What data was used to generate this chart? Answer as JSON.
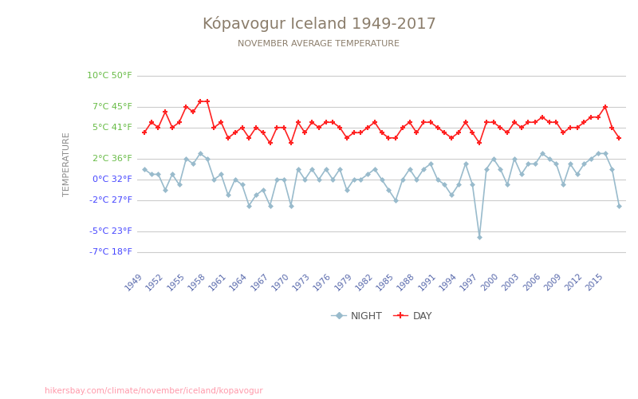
{
  "title": "Kópavogur Iceland 1949-2017",
  "subtitle": "NOVEMBER AVERAGE TEMPERATURE",
  "ylabel": "TEMPERATURE",
  "url_text": "hikersbay.com/climate/november/iceland/kopavogur",
  "title_color": "#8B7D6B",
  "subtitle_color": "#8B7D6B",
  "ylabel_color": "#8B8B8B",
  "grid_color": "#CCCCCC",
  "background_color": "#FFFFFF",
  "years": [
    1949,
    1950,
    1951,
    1952,
    1953,
    1954,
    1955,
    1956,
    1957,
    1958,
    1959,
    1960,
    1961,
    1962,
    1963,
    1964,
    1965,
    1966,
    1967,
    1968,
    1969,
    1970,
    1971,
    1972,
    1973,
    1974,
    1975,
    1976,
    1977,
    1978,
    1979,
    1980,
    1981,
    1982,
    1983,
    1984,
    1985,
    1986,
    1987,
    1988,
    1989,
    1990,
    1991,
    1992,
    1993,
    1994,
    1995,
    1996,
    1997,
    1998,
    1999,
    2000,
    2001,
    2002,
    2003,
    2004,
    2005,
    2006,
    2007,
    2008,
    2009,
    2010,
    2011,
    2012,
    2013,
    2014,
    2015,
    2016,
    2017
  ],
  "day_temps": [
    4.5,
    5.5,
    5.0,
    6.5,
    5.0,
    5.5,
    7.0,
    6.5,
    7.5,
    7.5,
    5.0,
    5.5,
    4.0,
    4.5,
    5.0,
    4.0,
    5.0,
    4.5,
    3.5,
    5.0,
    5.0,
    3.5,
    5.5,
    4.5,
    5.5,
    5.0,
    5.5,
    5.5,
    5.0,
    4.0,
    4.5,
    4.5,
    5.0,
    5.5,
    4.5,
    4.0,
    4.0,
    5.0,
    5.5,
    4.5,
    5.5,
    5.5,
    5.0,
    4.5,
    4.0,
    4.5,
    5.5,
    4.5,
    3.5,
    5.5,
    5.5,
    5.0,
    4.5,
    5.5,
    5.0,
    5.5,
    5.5,
    6.0,
    5.5,
    5.5,
    4.5,
    5.0,
    5.0,
    5.5,
    6.0,
    6.0,
    7.0,
    5.0,
    4.0
  ],
  "night_temps": [
    1.0,
    0.5,
    0.5,
    -1.0,
    0.5,
    -0.5,
    2.0,
    1.5,
    2.5,
    2.0,
    0.0,
    0.5,
    -1.5,
    0.0,
    -0.5,
    -2.5,
    -1.5,
    -1.0,
    -2.5,
    0.0,
    0.0,
    -2.5,
    1.0,
    0.0,
    1.0,
    0.0,
    1.0,
    0.0,
    1.0,
    -1.0,
    0.0,
    0.0,
    0.5,
    1.0,
    0.0,
    -1.0,
    -2.0,
    0.0,
    1.0,
    0.0,
    1.0,
    1.5,
    0.0,
    -0.5,
    -1.5,
    -0.5,
    1.5,
    -0.5,
    -5.5,
    1.0,
    2.0,
    1.0,
    -0.5,
    2.0,
    0.5,
    1.5,
    1.5,
    2.5,
    2.0,
    1.5,
    -0.5,
    1.5,
    0.5,
    1.5,
    2.0,
    2.5,
    2.5,
    1.0,
    -2.5
  ],
  "day_color": "#FF2222",
  "night_color": "#99BBCC",
  "yticks_c": [
    10,
    7,
    5,
    2,
    0,
    -2,
    -5,
    -7
  ],
  "yticks_f": [
    50,
    45,
    41,
    36,
    32,
    27,
    23,
    18
  ],
  "ytick_colors": [
    "#66BB44",
    "#66BB44",
    "#66BB44",
    "#66BB44",
    "#4444FF",
    "#4444FF",
    "#4444FF",
    "#4444FF"
  ],
  "xtick_years": [
    1949,
    1952,
    1955,
    1958,
    1961,
    1964,
    1967,
    1970,
    1973,
    1976,
    1979,
    1982,
    1985,
    1988,
    1991,
    1994,
    1997,
    2000,
    2003,
    2006,
    2009,
    2012,
    2015
  ]
}
